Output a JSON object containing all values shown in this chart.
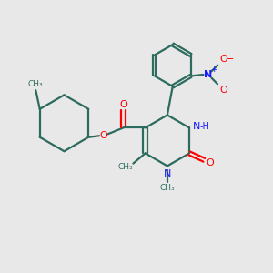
{
  "background_color": "#e8e8e8",
  "bond_color": "#2d6b5e",
  "n_color": "#1a1aff",
  "o_color": "#ff0000",
  "figsize": [
    3.0,
    3.0
  ],
  "dpi": 100,
  "xlim": [
    0,
    10
  ],
  "ylim": [
    0,
    10
  ]
}
